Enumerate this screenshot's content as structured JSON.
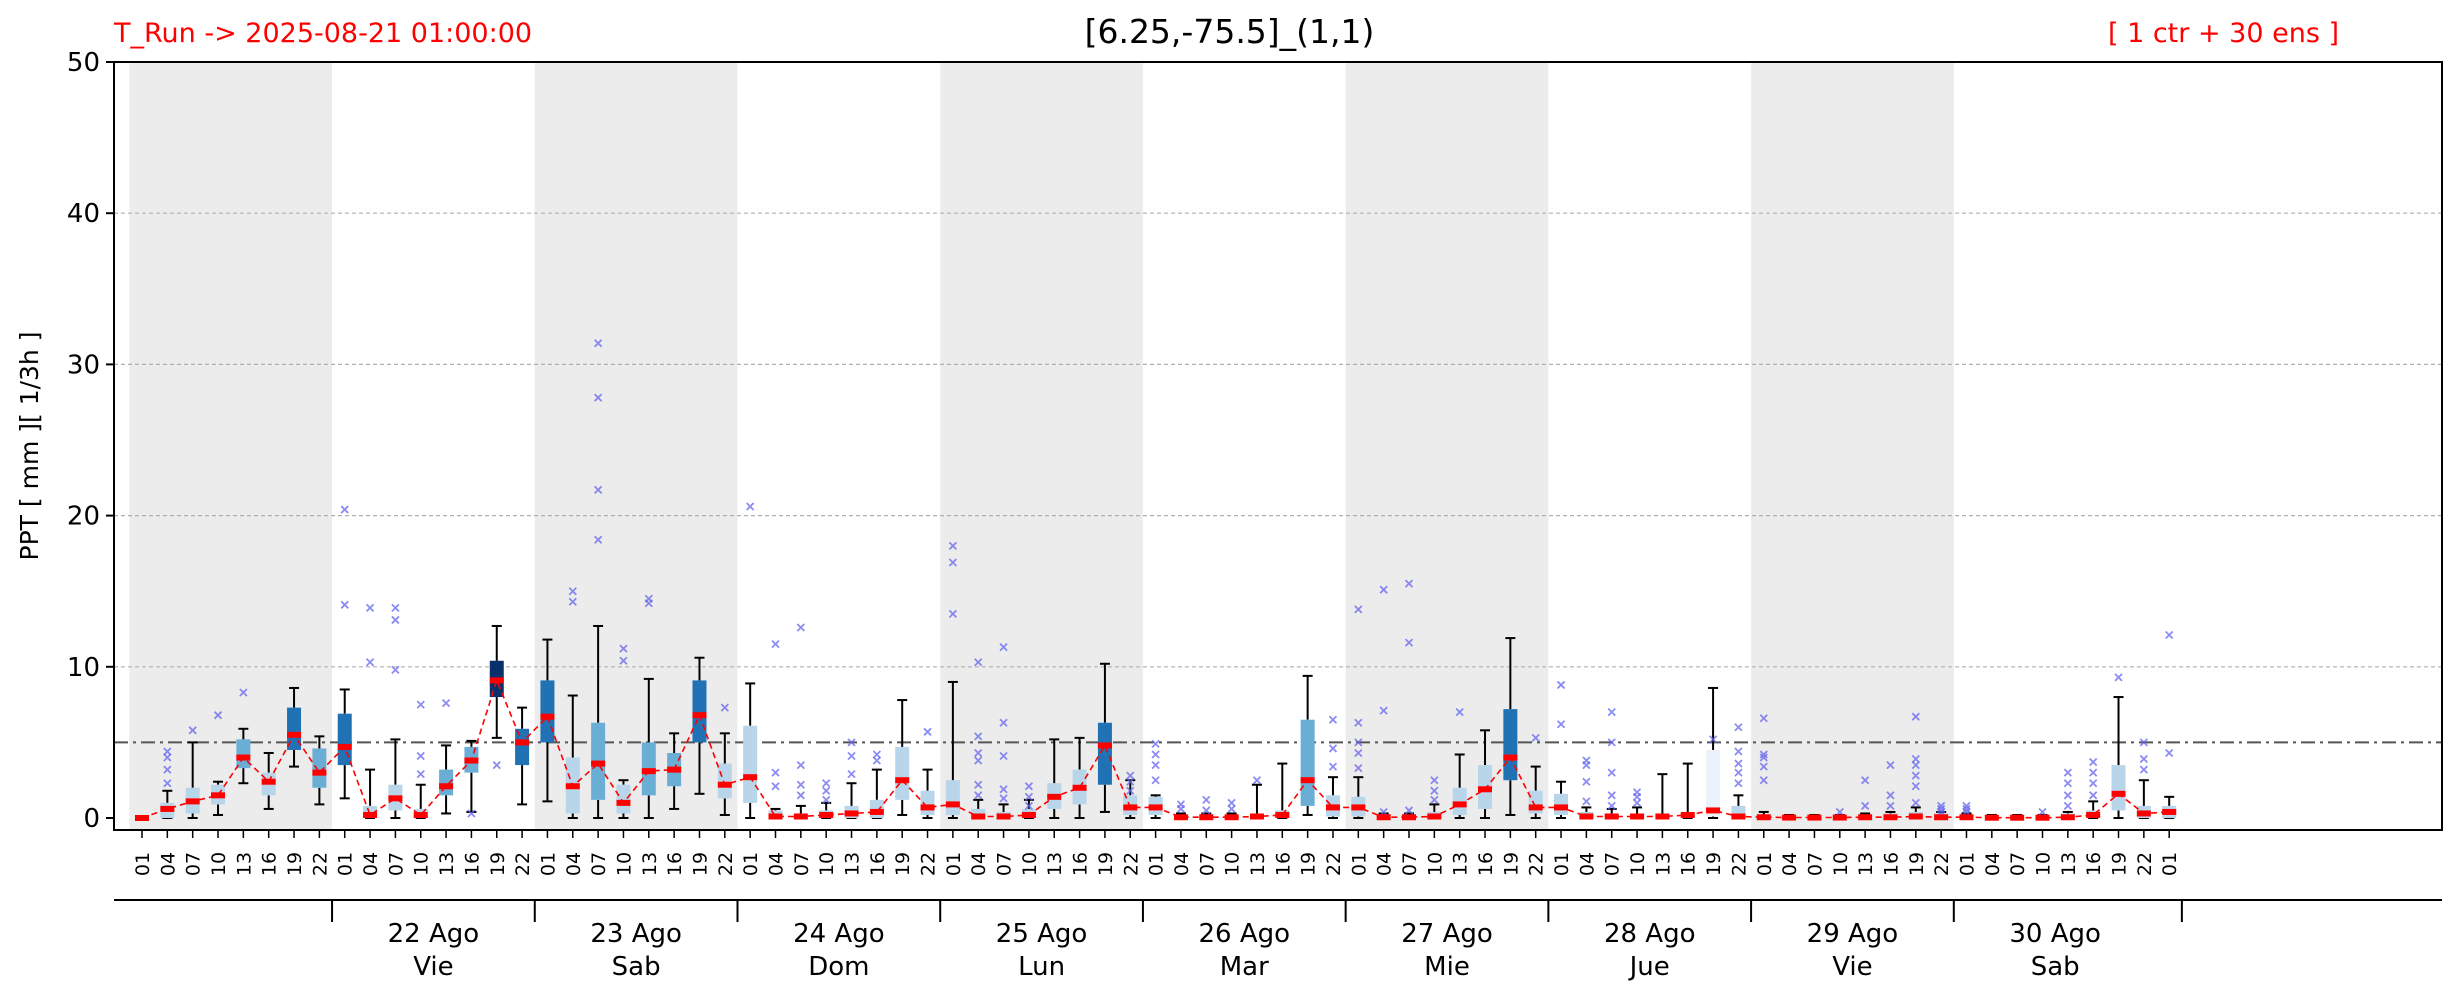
{
  "header": {
    "run_label": "T_Run -> 2025-08-21  01:00:00",
    "title": "[6.25,-75.5]_(1,1)",
    "members_label": "[ 1 ctr + 30 ens ]"
  },
  "chart_data": {
    "type": "boxplot",
    "ylabel": "PPT  [ mm ][ 1/3h ]",
    "ylim": [
      0,
      50
    ],
    "yticks": [
      0,
      10,
      20,
      30,
      40,
      50
    ],
    "grid": "horizontal dashed",
    "threshold": 5,
    "colors": {
      "median": "#ff0000",
      "median_line": "#ff0000",
      "outlier": "#6666ee",
      "whisker": "#000000",
      "shade": "#ececec",
      "box_very_light": "#eaf3fb",
      "box_light": "#b8d5ea",
      "box_mid": "#6aaed6",
      "box_strong": "#2171b5",
      "box_dark": "#08306b",
      "threshold": "#555555"
    },
    "hour_labels": [
      "01",
      "04",
      "07",
      "10",
      "13",
      "16",
      "19",
      "22"
    ],
    "days": [
      {
        "date": "",
        "weekday": ""
      },
      {
        "date": "22 Ago",
        "weekday": "Vie"
      },
      {
        "date": "23 Ago",
        "weekday": "Sab"
      },
      {
        "date": "24 Ago",
        "weekday": "Dom"
      },
      {
        "date": "25 Ago",
        "weekday": "Lun"
      },
      {
        "date": "26 Ago",
        "weekday": "Mar"
      },
      {
        "date": "27 Ago",
        "weekday": "Mie"
      },
      {
        "date": "28 Ago",
        "weekday": "Jue"
      },
      {
        "date": "29 Ago",
        "weekday": "Vie"
      },
      {
        "date": "30 Ago",
        "weekday": "Sab"
      }
    ],
    "steps": [
      {
        "q1": 0,
        "q3": 0,
        "lo": 0,
        "hi": 0,
        "med": 0,
        "level": 0,
        "out": []
      },
      {
        "q1": 0,
        "q3": 1,
        "lo": 0,
        "hi": 1.8,
        "med": 0.6,
        "level": 1,
        "out": [
          2.3,
          3.2,
          4,
          4.4
        ]
      },
      {
        "q1": 0.3,
        "q3": 2,
        "lo": 0,
        "hi": 5,
        "med": 1.1,
        "level": 1,
        "out": [
          5.8
        ]
      },
      {
        "q1": 0.9,
        "q3": 2.2,
        "lo": 0.2,
        "hi": 2.4,
        "med": 1.5,
        "level": 1,
        "out": [
          6.8
        ]
      },
      {
        "q1": 3.3,
        "q3": 5.2,
        "lo": 2.3,
        "hi": 5.9,
        "med": 4,
        "level": 2,
        "out": [
          8.3
        ]
      },
      {
        "q1": 1.5,
        "q3": 3,
        "lo": 0.6,
        "hi": 4.3,
        "med": 2.4,
        "level": 1,
        "out": []
      },
      {
        "q1": 4.5,
        "q3": 7.3,
        "lo": 3.4,
        "hi": 8.6,
        "med": 5.5,
        "level": 3,
        "out": []
      },
      {
        "q1": 2,
        "q3": 4.6,
        "lo": 0.9,
        "hi": 5.4,
        "med": 3,
        "level": 2,
        "out": []
      },
      {
        "q1": 3.5,
        "q3": 6.9,
        "lo": 1.3,
        "hi": 8.5,
        "med": 4.7,
        "level": 3,
        "out": [
          14.1,
          20.4
        ]
      },
      {
        "q1": 0,
        "q3": 0.8,
        "lo": 0,
        "hi": 3.2,
        "med": 0.2,
        "level": 1,
        "out": [
          10.3,
          13.9
        ]
      },
      {
        "q1": 0.5,
        "q3": 2.2,
        "lo": 0,
        "hi": 5.2,
        "med": 1.3,
        "level": 1,
        "out": [
          9.8,
          13.1,
          13.9
        ]
      },
      {
        "q1": 0,
        "q3": 0.6,
        "lo": 0,
        "hi": 2.2,
        "med": 0.2,
        "level": 1,
        "out": [
          2.9,
          4.1,
          7.5
        ]
      },
      {
        "q1": 1.5,
        "q3": 3.2,
        "lo": 0.3,
        "hi": 4.8,
        "med": 2.1,
        "level": 2,
        "out": [
          7.6
        ]
      },
      {
        "q1": 3,
        "q3": 4.7,
        "lo": 0.4,
        "hi": 5.1,
        "med": 3.8,
        "level": 2,
        "out": [
          0.3
        ]
      },
      {
        "q1": 8,
        "q3": 10.4,
        "lo": 5.3,
        "hi": 12.7,
        "med": 9.1,
        "level": 5,
        "out": [
          3.5
        ]
      },
      {
        "q1": 3.5,
        "q3": 5.9,
        "lo": 0.9,
        "hi": 7.3,
        "med": 5,
        "level": 3,
        "out": []
      },
      {
        "q1": 5,
        "q3": 9.1,
        "lo": 1.1,
        "hi": 11.8,
        "med": 6.7,
        "level": 4,
        "out": []
      },
      {
        "q1": 0.3,
        "q3": 4,
        "lo": 0,
        "hi": 8.1,
        "med": 2.1,
        "level": 1,
        "out": [
          14.3,
          15
        ]
      },
      {
        "q1": 1.2,
        "q3": 6.3,
        "lo": 0,
        "hi": 12.7,
        "med": 3.6,
        "level": 2,
        "out": [
          18.4,
          21.7,
          27.8,
          31.4
        ]
      },
      {
        "q1": 0.3,
        "q3": 2.2,
        "lo": 0,
        "hi": 2.5,
        "med": 1,
        "level": 1,
        "out": [
          10.4,
          11.2
        ]
      },
      {
        "q1": 1.5,
        "q3": 5,
        "lo": 0,
        "hi": 9.2,
        "med": 3.1,
        "level": 2,
        "out": [
          14.2,
          14.5
        ]
      },
      {
        "q1": 2.1,
        "q3": 4.3,
        "lo": 0.6,
        "hi": 5.6,
        "med": 3.2,
        "level": 2,
        "out": []
      },
      {
        "q1": 5,
        "q3": 9.1,
        "lo": 1.6,
        "hi": 10.6,
        "med": 6.8,
        "level": 4,
        "out": []
      },
      {
        "q1": 1.3,
        "q3": 3.6,
        "lo": 0.2,
        "hi": 5.6,
        "med": 2.2,
        "level": 1,
        "out": [
          7.3
        ]
      },
      {
        "q1": 1,
        "q3": 6.1,
        "lo": 0,
        "hi": 8.9,
        "med": 2.7,
        "level": 1,
        "out": [
          20.6
        ]
      },
      {
        "q1": 0,
        "q3": 0.5,
        "lo": 0,
        "hi": 0.6,
        "med": 0.1,
        "level": 1,
        "out": [
          2.1,
          3,
          11.5
        ]
      },
      {
        "q1": 0,
        "q3": 0.3,
        "lo": 0,
        "hi": 0.8,
        "med": 0.1,
        "level": 1,
        "out": [
          1.5,
          2.2,
          3.5,
          12.6
        ]
      },
      {
        "q1": 0,
        "q3": 0.5,
        "lo": 0,
        "hi": 1,
        "med": 0.2,
        "level": 1,
        "out": [
          1.2,
          1.8,
          2.3
        ]
      },
      {
        "q1": 0,
        "q3": 0.8,
        "lo": 0,
        "hi": 2.3,
        "med": 0.3,
        "level": 1,
        "out": [
          2.9,
          4.1,
          5
        ]
      },
      {
        "q1": 0,
        "q3": 1.2,
        "lo": 0,
        "hi": 3.2,
        "med": 0.4,
        "level": 1,
        "out": [
          3.8,
          4.2
        ]
      },
      {
        "q1": 1.2,
        "q3": 4.7,
        "lo": 0.2,
        "hi": 7.8,
        "med": 2.5,
        "level": 1,
        "out": []
      },
      {
        "q1": 0.2,
        "q3": 1.8,
        "lo": 0,
        "hi": 3.2,
        "med": 0.7,
        "level": 1,
        "out": [
          5.7
        ]
      },
      {
        "q1": 0.2,
        "q3": 2.5,
        "lo": 0,
        "hi": 9,
        "med": 0.9,
        "level": 1,
        "out": [
          13.5,
          16.9,
          18
        ]
      },
      {
        "q1": 0,
        "q3": 0.6,
        "lo": 0,
        "hi": 1.2,
        "med": 0.1,
        "level": 1,
        "out": [
          1.5,
          2.2,
          3.8,
          4.3,
          5.4,
          10.3
        ]
      },
      {
        "q1": 0,
        "q3": 0.4,
        "lo": 0,
        "hi": 0.9,
        "med": 0.1,
        "level": 1,
        "out": [
          1.3,
          1.9,
          4.1,
          6.3,
          11.3
        ]
      },
      {
        "q1": 0,
        "q3": 0.6,
        "lo": 0,
        "hi": 1.2,
        "med": 0.2,
        "level": 1,
        "out": [
          0.8,
          1.4,
          2.1
        ]
      },
      {
        "q1": 0.6,
        "q3": 2.3,
        "lo": 0,
        "hi": 5.2,
        "med": 1.4,
        "level": 1,
        "out": []
      },
      {
        "q1": 0.9,
        "q3": 3.2,
        "lo": 0,
        "hi": 5.3,
        "med": 2,
        "level": 1,
        "out": []
      },
      {
        "q1": 2.2,
        "q3": 6.3,
        "lo": 0.4,
        "hi": 10.2,
        "med": 4.8,
        "level": 3,
        "out": []
      },
      {
        "q1": 0.2,
        "q3": 1.5,
        "lo": 0,
        "hi": 2.5,
        "med": 0.7,
        "level": 1,
        "out": [
          1.8,
          2.4,
          2.8
        ]
      },
      {
        "q1": 0.2,
        "q3": 1.4,
        "lo": 0,
        "hi": 1.5,
        "med": 0.7,
        "level": 1,
        "out": [
          2.5,
          3.5,
          4.2,
          4.9
        ]
      },
      {
        "q1": 0,
        "q3": 0.2,
        "lo": 0,
        "hi": 0.3,
        "med": 0.05,
        "level": 1,
        "out": [
          0.6,
          0.9
        ]
      },
      {
        "q1": 0,
        "q3": 0.2,
        "lo": 0,
        "hi": 0.3,
        "med": 0.05,
        "level": 1,
        "out": [
          0.5,
          1.2
        ]
      },
      {
        "q1": 0,
        "q3": 0.2,
        "lo": 0,
        "hi": 0.3,
        "med": 0.05,
        "level": 1,
        "out": [
          0.6,
          1
        ]
      },
      {
        "q1": 0,
        "q3": 0.3,
        "lo": 0,
        "hi": 2.2,
        "med": 0.1,
        "level": 1,
        "out": [
          2.5
        ]
      },
      {
        "q1": 0,
        "q3": 0.5,
        "lo": 0,
        "hi": 3.6,
        "med": 0.2,
        "level": 1,
        "out": []
      },
      {
        "q1": 0.8,
        "q3": 6.5,
        "lo": 0.2,
        "hi": 9.4,
        "med": 2.5,
        "level": 2,
        "out": []
      },
      {
        "q1": 0.1,
        "q3": 1.5,
        "lo": 0,
        "hi": 2.7,
        "med": 0.7,
        "level": 1,
        "out": [
          3.4,
          4.6,
          6.5
        ]
      },
      {
        "q1": 0.1,
        "q3": 1.4,
        "lo": 0,
        "hi": 2.7,
        "med": 0.7,
        "level": 1,
        "out": [
          3.3,
          4.3,
          5,
          6.3,
          13.8
        ]
      },
      {
        "q1": 0,
        "q3": 0.2,
        "lo": 0,
        "hi": 0.3,
        "med": 0.05,
        "level": 1,
        "out": [
          0.4,
          7.1,
          15.1
        ]
      },
      {
        "q1": 0,
        "q3": 0.2,
        "lo": 0,
        "hi": 0.3,
        "med": 0.05,
        "level": 1,
        "out": [
          0.5,
          11.6,
          15.5
        ]
      },
      {
        "q1": 0,
        "q3": 0.4,
        "lo": 0,
        "hi": 0.9,
        "med": 0.1,
        "level": 1,
        "out": [
          1.2,
          1.8,
          2.5
        ]
      },
      {
        "q1": 0.2,
        "q3": 2,
        "lo": 0,
        "hi": 4.2,
        "med": 0.9,
        "level": 1,
        "out": [
          7
        ]
      },
      {
        "q1": 0.6,
        "q3": 3.5,
        "lo": 0,
        "hi": 5.8,
        "med": 1.9,
        "level": 1,
        "out": []
      },
      {
        "q1": 2.5,
        "q3": 7.2,
        "lo": 0.2,
        "hi": 11.9,
        "med": 4,
        "level": 3,
        "out": []
      },
      {
        "q1": 0.3,
        "q3": 1.8,
        "lo": 0,
        "hi": 3.4,
        "med": 0.7,
        "level": 1,
        "out": [
          5.3
        ]
      },
      {
        "q1": 0.2,
        "q3": 1.6,
        "lo": 0,
        "hi": 2.4,
        "med": 0.7,
        "level": 1,
        "out": [
          6.2,
          8.8
        ]
      },
      {
        "q1": 0,
        "q3": 0.4,
        "lo": 0,
        "hi": 0.7,
        "med": 0.1,
        "level": 1,
        "out": [
          1.1,
          2.4,
          3.5,
          3.8
        ]
      },
      {
        "q1": 0,
        "q3": 0.3,
        "lo": 0,
        "hi": 0.6,
        "med": 0.1,
        "level": 1,
        "out": [
          0.8,
          1.5,
          3,
          5,
          7
        ]
      },
      {
        "q1": 0,
        "q3": 0.3,
        "lo": 0,
        "hi": 0.7,
        "med": 0.1,
        "level": 1,
        "out": [
          1,
          1.4,
          1.7
        ]
      },
      {
        "q1": 0,
        "q3": 0.2,
        "lo": 0,
        "hi": 2.9,
        "med": 0.1,
        "level": 0,
        "out": []
      },
      {
        "q1": 0,
        "q3": 0.3,
        "lo": 0,
        "hi": 3.6,
        "med": 0.2,
        "level": 0,
        "out": []
      },
      {
        "q1": 0.1,
        "q3": 4.5,
        "lo": 0,
        "hi": 8.6,
        "med": 0.5,
        "level": 0,
        "out": [
          5.2
        ]
      },
      {
        "q1": 0,
        "q3": 0.8,
        "lo": 0,
        "hi": 1.5,
        "med": 0.1,
        "level": 1,
        "out": [
          2.3,
          3,
          3.6,
          4.4,
          6
        ]
      },
      {
        "q1": 0,
        "q3": 0.2,
        "lo": 0,
        "hi": 0.4,
        "med": 0.05,
        "level": 1,
        "out": [
          2.5,
          3.4,
          4,
          4.2,
          6.6
        ]
      },
      {
        "q1": 0,
        "q3": 0.1,
        "lo": 0,
        "hi": 0.2,
        "med": 0.03,
        "level": 0,
        "out": []
      },
      {
        "q1": 0,
        "q3": 0.1,
        "lo": 0,
        "hi": 0.2,
        "med": 0.03,
        "level": 0,
        "out": []
      },
      {
        "q1": 0,
        "q3": 0.1,
        "lo": 0,
        "hi": 0.2,
        "med": 0.03,
        "level": 0,
        "out": [
          0.4
        ]
      },
      {
        "q1": 0,
        "q3": 0.2,
        "lo": 0,
        "hi": 0.3,
        "med": 0.05,
        "level": 1,
        "out": [
          0.8,
          2.5
        ]
      },
      {
        "q1": 0,
        "q3": 0.3,
        "lo": 0,
        "hi": 0.4,
        "med": 0.05,
        "level": 1,
        "out": [
          0.8,
          1.5,
          3.5
        ]
      },
      {
        "q1": 0,
        "q3": 0.4,
        "lo": 0,
        "hi": 0.7,
        "med": 0.1,
        "level": 1,
        "out": [
          1,
          2.1,
          2.8,
          3.5,
          3.9,
          6.7
        ]
      },
      {
        "q1": 0,
        "q3": 0.3,
        "lo": 0,
        "hi": 0.4,
        "med": 0.05,
        "level": 1,
        "out": [
          0.4,
          0.6,
          0.8
        ]
      },
      {
        "q1": 0,
        "q3": 0.2,
        "lo": 0,
        "hi": 0.3,
        "med": 0.05,
        "level": 1,
        "out": [
          0.4,
          0.6,
          0.8
        ]
      },
      {
        "q1": 0,
        "q3": 0.1,
        "lo": 0,
        "hi": 0.2,
        "med": 0.02,
        "level": 0,
        "out": []
      },
      {
        "q1": 0,
        "q3": 0.1,
        "lo": 0,
        "hi": 0.2,
        "med": 0.02,
        "level": 0,
        "out": []
      },
      {
        "q1": 0,
        "q3": 0.1,
        "lo": 0,
        "hi": 0.2,
        "med": 0.02,
        "level": 0,
        "out": [
          0.4
        ]
      },
      {
        "q1": 0,
        "q3": 0.3,
        "lo": 0,
        "hi": 0.4,
        "med": 0.05,
        "level": 1,
        "out": [
          0.8,
          1.5,
          2.3,
          3
        ]
      },
      {
        "q1": 0,
        "q3": 0.5,
        "lo": 0,
        "hi": 1.1,
        "med": 0.2,
        "level": 1,
        "out": [
          1.5,
          2.3,
          3,
          3.7
        ]
      },
      {
        "q1": 0.5,
        "q3": 3.5,
        "lo": 0,
        "hi": 8,
        "med": 1.6,
        "level": 1,
        "out": [
          9.3
        ]
      },
      {
        "q1": 0,
        "q3": 0.8,
        "lo": 0,
        "hi": 2.5,
        "med": 0.3,
        "level": 1,
        "out": [
          3.2,
          3.9,
          5
        ]
      },
      {
        "q1": 0,
        "q3": 0.8,
        "lo": 0,
        "hi": 1.4,
        "med": 0.4,
        "level": 1,
        "out": [
          4.3,
          12.1
        ]
      }
    ]
  }
}
